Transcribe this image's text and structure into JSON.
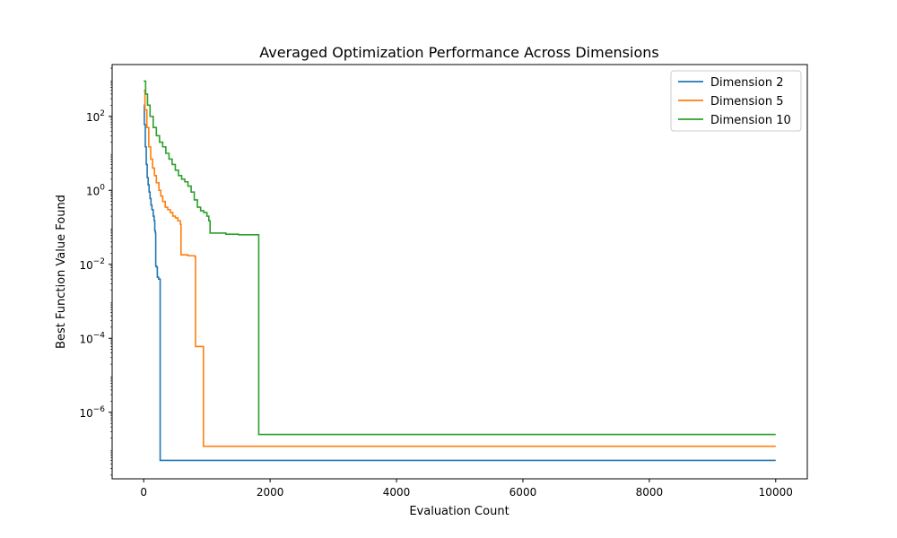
{
  "chart_data": {
    "type": "line",
    "title": "Averaged Optimization Performance Across Dimensions",
    "xlabel": "Evaluation Count",
    "ylabel": "Best Function Value Found",
    "xlim": [
      -500,
      10500
    ],
    "ylim_log10": [
      -7.8,
      3.4
    ],
    "yscale": "log",
    "x_ticks": [
      0,
      2000,
      4000,
      6000,
      8000,
      10000
    ],
    "x_tick_labels": [
      "0",
      "2000",
      "4000",
      "6000",
      "8000",
      "10000"
    ],
    "y_ticks_log10": [
      2,
      0,
      -2,
      -4,
      -6
    ],
    "y_tick_labels": [
      {
        "base": "10",
        "exp": "2"
      },
      {
        "base": "10",
        "exp": "0"
      },
      {
        "base": "10",
        "exp": "−2"
      },
      {
        "base": "10",
        "exp": "−4"
      },
      {
        "base": "10",
        "exp": "−6"
      }
    ],
    "grid": false,
    "legend_position": "top-right",
    "series": [
      {
        "name": "Dimension 2",
        "color": "#1f77b4",
        "step": true,
        "points": [
          [
            0,
            200
          ],
          [
            10,
            60
          ],
          [
            25,
            15
          ],
          [
            40,
            5
          ],
          [
            55,
            2.2
          ],
          [
            70,
            1.4
          ],
          [
            85,
            0.9
          ],
          [
            100,
            0.6
          ],
          [
            115,
            0.4
          ],
          [
            130,
            0.3
          ],
          [
            150,
            0.2
          ],
          [
            165,
            0.15
          ],
          [
            175,
            0.08
          ],
          [
            185,
            0.07
          ],
          [
            190,
            0.009
          ],
          [
            200,
            0.0085
          ],
          [
            215,
            0.0045
          ],
          [
            235,
            0.004
          ],
          [
            260,
            5e-08
          ],
          [
            10000,
            5e-08
          ]
        ]
      },
      {
        "name": "Dimension 5",
        "color": "#ff7f0e",
        "step": true,
        "points": [
          [
            0,
            500
          ],
          [
            20,
            150
          ],
          [
            50,
            50
          ],
          [
            80,
            15
          ],
          [
            110,
            7
          ],
          [
            140,
            4
          ],
          [
            170,
            2.5
          ],
          [
            200,
            1.6
          ],
          [
            240,
            1
          ],
          [
            270,
            0.7
          ],
          [
            300,
            0.5
          ],
          [
            340,
            0.35
          ],
          [
            380,
            0.3
          ],
          [
            420,
            0.25
          ],
          [
            460,
            0.2
          ],
          [
            500,
            0.18
          ],
          [
            540,
            0.15
          ],
          [
            580,
            0.12
          ],
          [
            590,
            0.018
          ],
          [
            700,
            0.017
          ],
          [
            810,
            0.016
          ],
          [
            820,
            6e-05
          ],
          [
            940,
            6e-05
          ],
          [
            945,
            1.2e-07
          ],
          [
            10000,
            1.2e-07
          ]
        ]
      },
      {
        "name": "Dimension 10",
        "color": "#2ca02c",
        "step": true,
        "points": [
          [
            0,
            900
          ],
          [
            30,
            400
          ],
          [
            60,
            200
          ],
          [
            100,
            100
          ],
          [
            150,
            50
          ],
          [
            200,
            30
          ],
          [
            250,
            20
          ],
          [
            300,
            15
          ],
          [
            350,
            10
          ],
          [
            400,
            7
          ],
          [
            450,
            5
          ],
          [
            500,
            3.5
          ],
          [
            550,
            2.5
          ],
          [
            600,
            2
          ],
          [
            650,
            1.7
          ],
          [
            700,
            1.3
          ],
          [
            750,
            0.9
          ],
          [
            800,
            0.55
          ],
          [
            850,
            0.35
          ],
          [
            900,
            0.28
          ],
          [
            950,
            0.25
          ],
          [
            1000,
            0.2
          ],
          [
            1030,
            0.15
          ],
          [
            1050,
            0.07
          ],
          [
            1300,
            0.065
          ],
          [
            1500,
            0.063
          ],
          [
            1810,
            0.063
          ],
          [
            1820,
            2.5e-07
          ],
          [
            10000,
            2.5e-07
          ]
        ]
      }
    ]
  }
}
